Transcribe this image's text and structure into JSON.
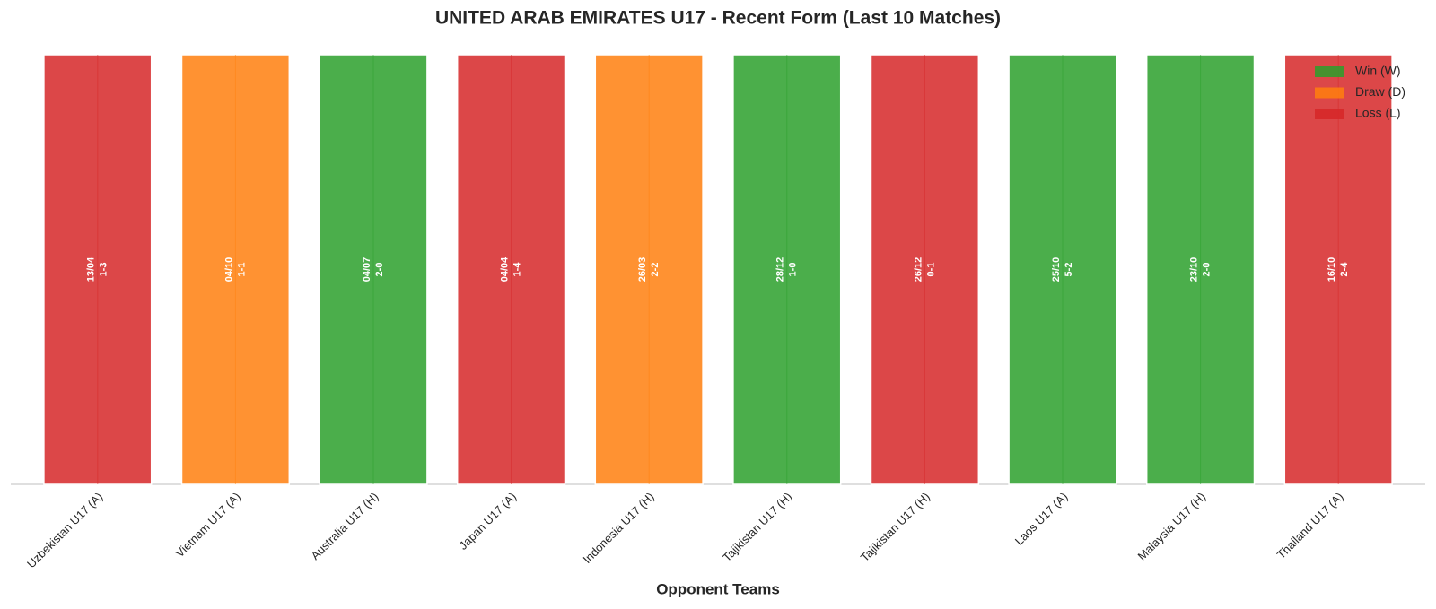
{
  "chart_data": {
    "type": "bar",
    "title": "UNITED ARAB EMIRATES U17 - Recent Form (Last 10 Matches)",
    "x_label": "Opponent Teams",
    "categories": [
      "Uzbekistan U17 (A)",
      "Vietnam U17 (A)",
      "Australia U17 (H)",
      "Japan U17 (A)",
      "Indonesia U17 (H)",
      "Tajikistan U17 (H)",
      "Tajikistan U17 (H)",
      "Laos U17 (A)",
      "Malaysia U17 (H)",
      "Thailand U17 (A)"
    ],
    "values": [
      1,
      1,
      1,
      1,
      1,
      1,
      1,
      1,
      1,
      1
    ],
    "dates": [
      "13/04",
      "04/10",
      "04/07",
      "04/04",
      "26/03",
      "28/12",
      "26/12",
      "25/10",
      "23/10",
      "16/10"
    ],
    "scores": [
      "1-3",
      "1-1",
      "2-0",
      "1-4",
      "2-2",
      "1-0",
      "0-1",
      "5-2",
      "2-0",
      "2-4"
    ],
    "colors": [
      "#d62728",
      "#ff7f0e",
      "#2ca02c",
      "#d62728",
      "#ff7f0e",
      "#2ca02c",
      "#d62728",
      "#2ca02c",
      "#2ca02c",
      "#d62728"
    ],
    "ylim": [
      0,
      1
    ],
    "legend_position": "upper right",
    "legend": [
      {
        "name": "Win (W)",
        "color": "#2ca02c"
      },
      {
        "name": "Draw (D)",
        "color": "#ff7f0e"
      },
      {
        "name": "Loss (L)",
        "color": "#d62728"
      }
    ]
  }
}
